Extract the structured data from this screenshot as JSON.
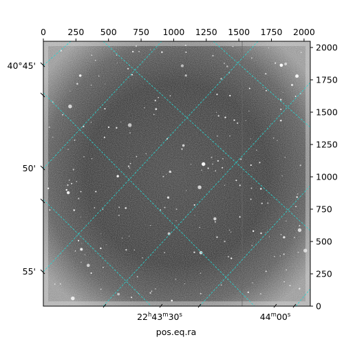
{
  "figure": {
    "xlabel": "pos.eq.ra",
    "background": "#ffffff",
    "grid_color": "#2ad4d0",
    "image_palette": "grayscale"
  },
  "pixel_axes": {
    "x": {
      "range": [
        0,
        2048
      ],
      "ticks": [
        0,
        250,
        500,
        750,
        1000,
        1250,
        1500,
        1750,
        2000
      ]
    },
    "y": {
      "range": [
        0,
        2048
      ],
      "ticks": [
        0,
        250,
        500,
        750,
        1000,
        1250,
        1500,
        1750,
        2000
      ]
    }
  },
  "world_axes": {
    "dec_labels": [
      "40°45'",
      "50'",
      "55'"
    ],
    "ra_labels": [
      {
        "h": "22",
        "m": "43",
        "s": "30",
        "unit_h": "h",
        "unit_m": "m",
        "unit_s": "s"
      },
      {
        "h": "",
        "m": "44",
        "s": "00",
        "unit_h": "",
        "unit_m": "m",
        "unit_s": "s"
      }
    ]
  }
}
